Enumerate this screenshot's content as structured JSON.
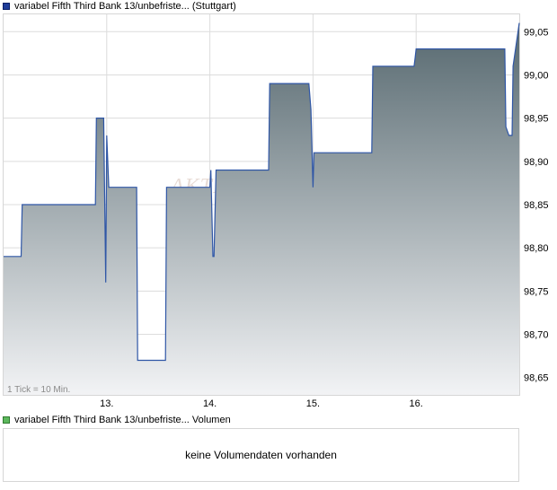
{
  "legend_price": {
    "label": "variabel Fifth Third Bank 13/unbefriste... (Stuttgart)",
    "color": "#1f3d99"
  },
  "legend_volume": {
    "label": "variabel Fifth Third Bank 13/unbefriste... Volumen",
    "color": "#5cb85c"
  },
  "tick_note": "1 Tick = 10 Min.",
  "watermark": "AKTIEN",
  "volume_message": "keine Volumendaten vorhanden",
  "colors": {
    "line": "#2f56a6",
    "fill_top": "#56686f",
    "fill_bottom": "#f2f3f5",
    "grid": "#dcdcdc"
  },
  "chart_data": {
    "type": "area",
    "title": "",
    "xlabel": "",
    "ylabel": "",
    "x_ticks": [
      "13.",
      "14.",
      "15.",
      "16."
    ],
    "x_tick_positions": [
      1,
      2,
      3,
      4
    ],
    "xlim": [
      0,
      5
    ],
    "ylim": [
      98.63,
      99.07
    ],
    "y_ticks": [
      "99,05",
      "99,00",
      "98,95",
      "98,90",
      "98,85",
      "98,80",
      "98,75",
      "98,70",
      "98,65"
    ],
    "y_tick_values": [
      99.05,
      99.0,
      98.95,
      98.9,
      98.85,
      98.8,
      98.75,
      98.7,
      98.65
    ],
    "grid": true,
    "series": [
      {
        "x": [
          0,
          0.17,
          0.18,
          0.89,
          0.9,
          0.97,
          0.99,
          1.0,
          1.02,
          1.04,
          1.29,
          1.3,
          1.57,
          1.58,
          1.85,
          1.86,
          2.0,
          2.01,
          2.03,
          2.04,
          2.06,
          2.08,
          2.57,
          2.58,
          2.96,
          2.98,
          3.0,
          3.01,
          3.57,
          3.58,
          3.96,
          3.98,
          3.99,
          4.0,
          4.02,
          4.86,
          4.87,
          4.9,
          4.93,
          4.94,
          5.0
        ],
        "y": [
          98.79,
          98.79,
          98.85,
          98.85,
          98.95,
          98.95,
          98.76,
          98.93,
          98.87,
          98.87,
          98.87,
          98.67,
          98.67,
          98.87,
          98.87,
          98.87,
          98.87,
          98.89,
          98.79,
          98.79,
          98.89,
          98.89,
          98.89,
          98.99,
          98.99,
          98.96,
          98.87,
          98.91,
          98.91,
          99.01,
          99.01,
          99.01,
          99.02,
          99.03,
          99.03,
          99.03,
          98.94,
          98.93,
          98.93,
          99.01,
          99.06
        ]
      }
    ]
  }
}
